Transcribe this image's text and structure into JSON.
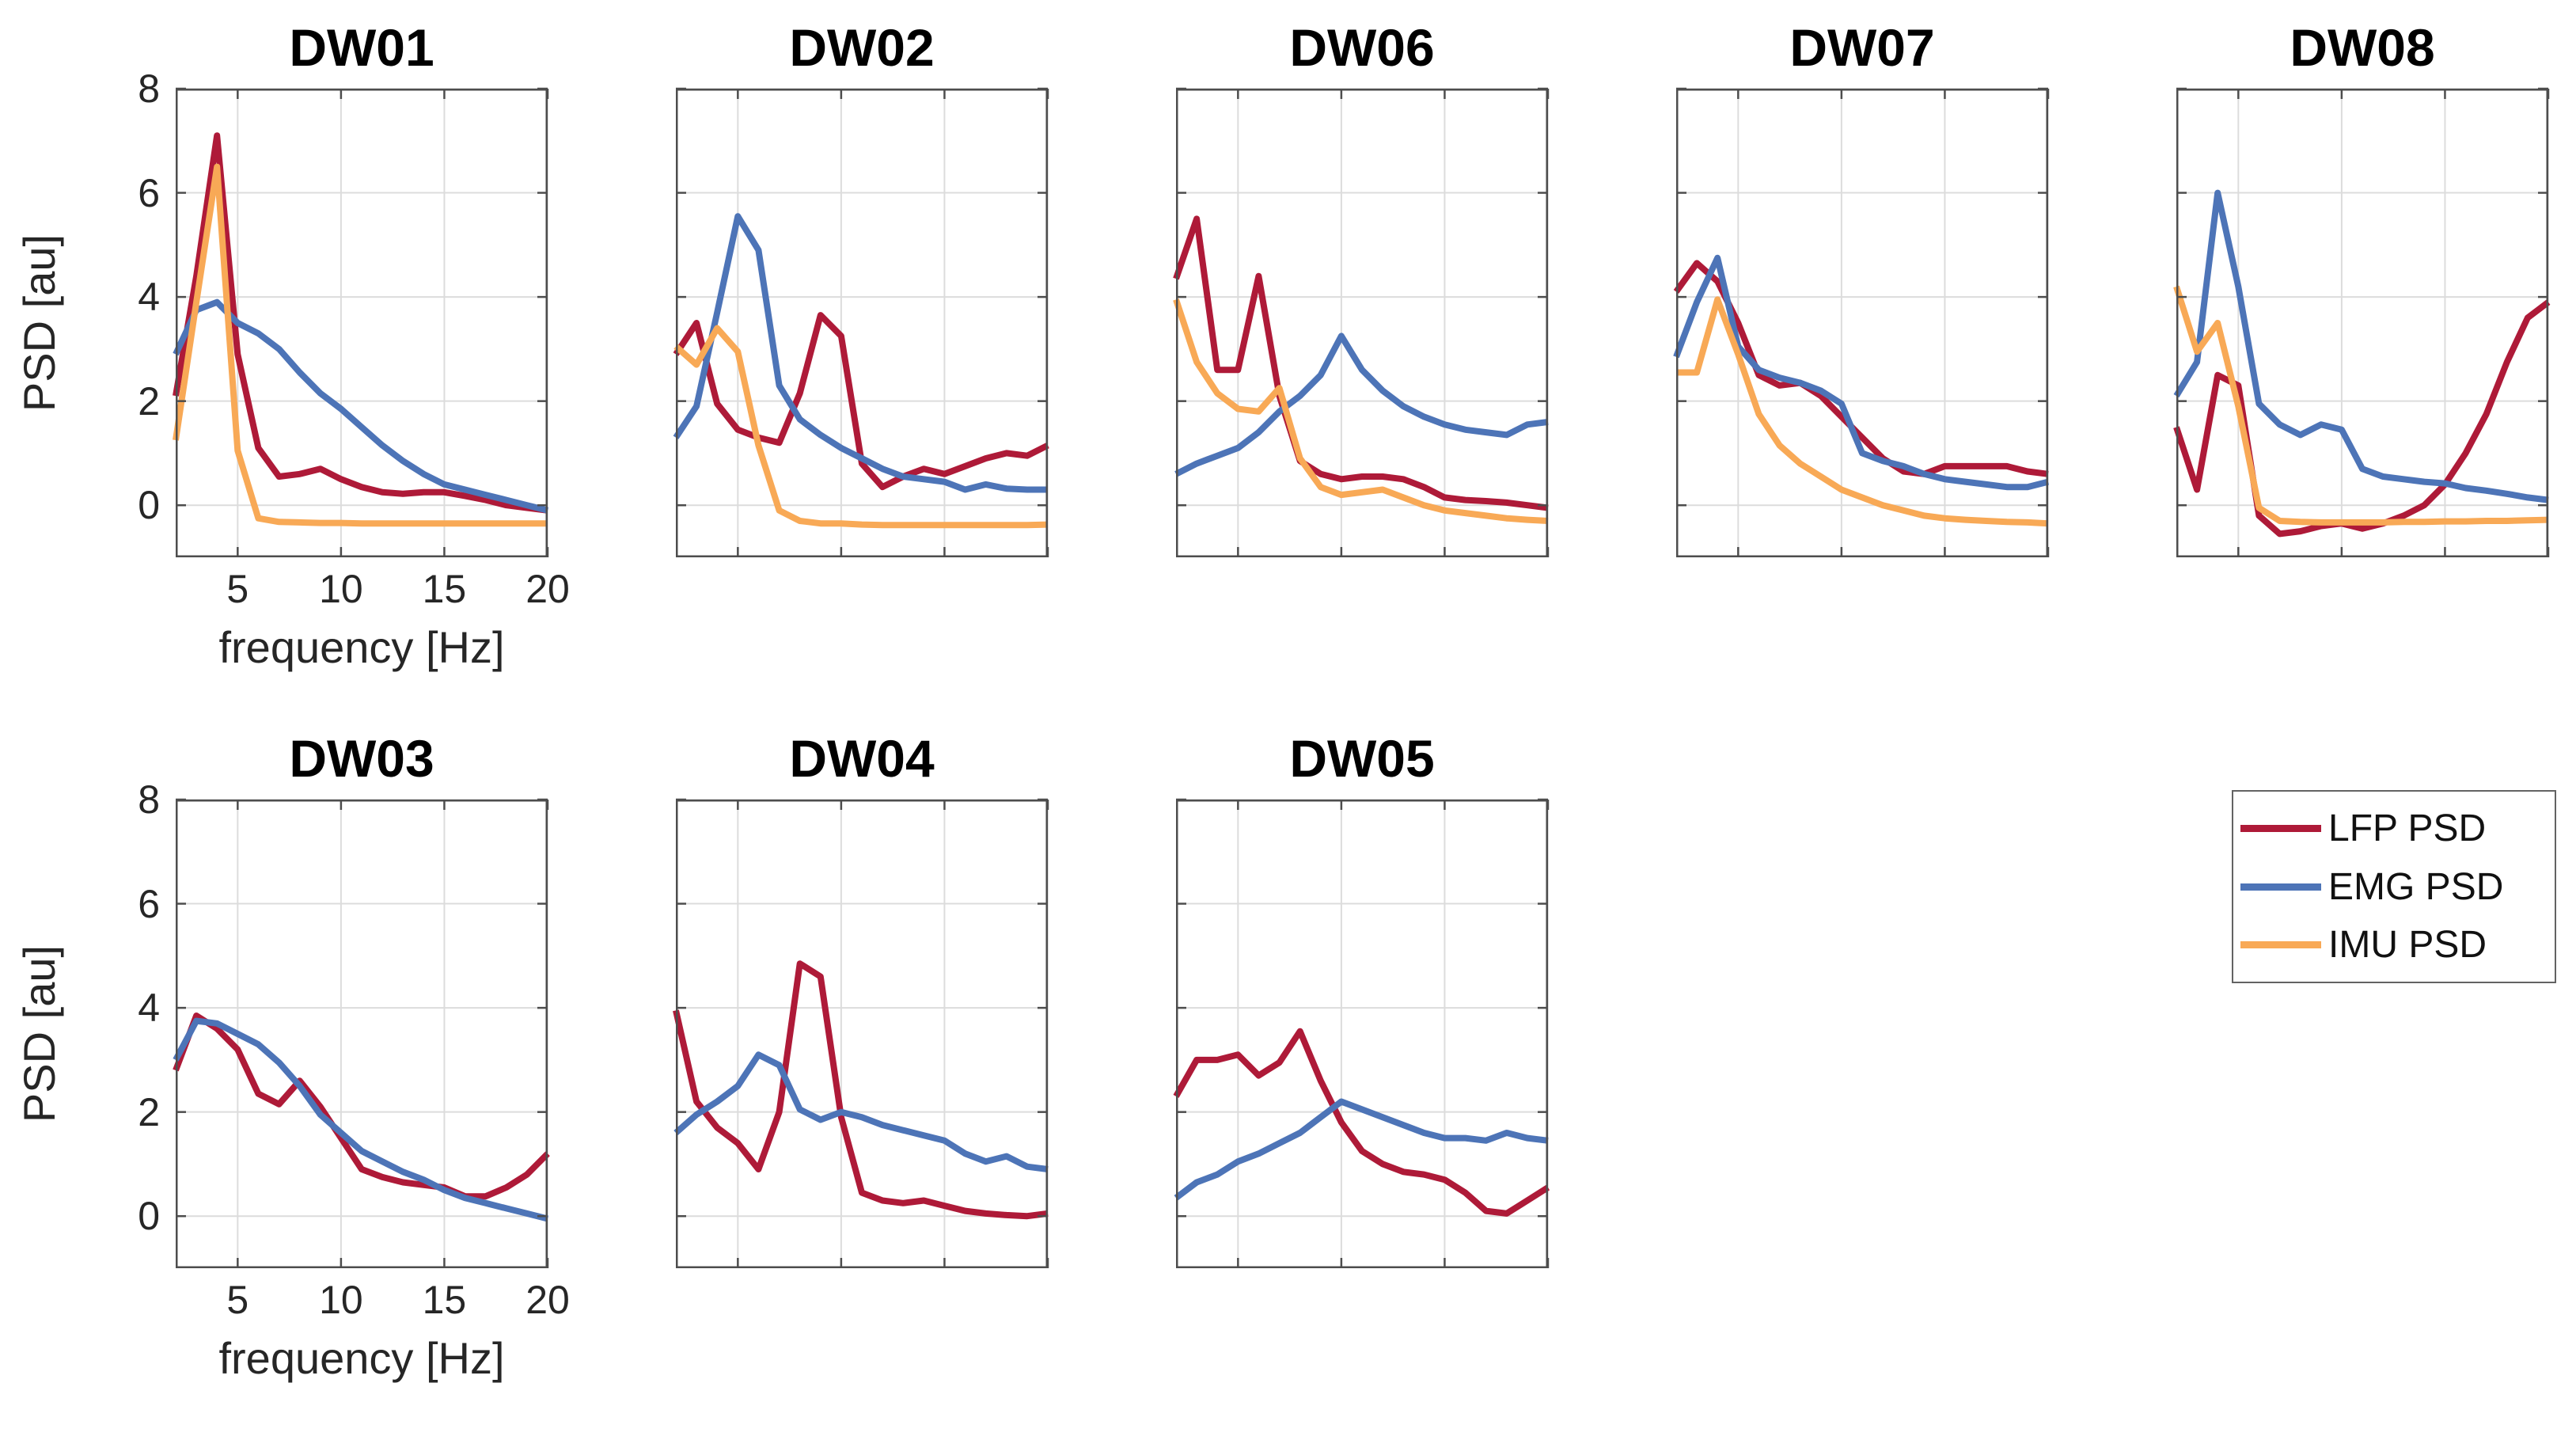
{
  "figure": {
    "background": "#ffffff",
    "xlabel": "frequency [Hz]",
    "ylabel": "PSD [au]",
    "x": [
      2,
      3,
      4,
      5,
      6,
      7,
      8,
      9,
      10,
      11,
      12,
      13,
      14,
      15,
      16,
      17,
      18,
      19,
      20
    ],
    "xlim": [
      2,
      20
    ],
    "ylim": [
      -1,
      8
    ],
    "xticks": [
      5,
      10,
      15,
      20
    ],
    "yticks": [
      0,
      2,
      4,
      6,
      8
    ],
    "grid": true,
    "grid_color": "#dcdcdc",
    "axis_color": "#4d4d4d",
    "text_color": "#262626",
    "title_color": "#000000"
  },
  "chart_data": [
    {
      "type": "line",
      "title": "DW01",
      "row": 0,
      "col": 0,
      "show_axis_labels": true,
      "series": [
        {
          "name": "LFP PSD",
          "color": "#AE1A38",
          "values": [
            2.1,
            4.4,
            7.1,
            2.9,
            1.1,
            0.55,
            0.6,
            0.7,
            0.5,
            0.35,
            0.25,
            0.22,
            0.25,
            0.25,
            0.18,
            0.1,
            0.0,
            -0.05,
            -0.1
          ]
        },
        {
          "name": "EMG PSD",
          "color": "#4D74B7",
          "values": [
            2.9,
            3.75,
            3.9,
            3.5,
            3.3,
            3.0,
            2.55,
            2.15,
            1.85,
            1.5,
            1.15,
            0.85,
            0.6,
            0.4,
            0.3,
            0.2,
            0.1,
            0.0,
            -0.1
          ]
        },
        {
          "name": "IMU PSD",
          "color": "#F8A956",
          "values": [
            1.25,
            3.9,
            6.5,
            1.05,
            -0.25,
            -0.32,
            -0.33,
            -0.34,
            -0.34,
            -0.35,
            -0.35,
            -0.35,
            -0.35,
            -0.35,
            -0.35,
            -0.35,
            -0.35,
            -0.35,
            -0.35
          ]
        }
      ]
    },
    {
      "type": "line",
      "title": "DW02",
      "row": 0,
      "col": 1,
      "show_axis_labels": false,
      "series": [
        {
          "name": "LFP PSD",
          "color": "#AE1A38",
          "values": [
            2.9,
            3.5,
            1.95,
            1.45,
            1.3,
            1.2,
            2.15,
            3.65,
            3.25,
            0.8,
            0.35,
            0.55,
            0.7,
            0.6,
            0.75,
            0.9,
            1.0,
            0.95,
            1.15
          ]
        },
        {
          "name": "EMG PSD",
          "color": "#4D74B7",
          "values": [
            1.3,
            1.9,
            3.7,
            5.55,
            4.9,
            2.3,
            1.65,
            1.35,
            1.1,
            0.9,
            0.7,
            0.55,
            0.5,
            0.45,
            0.3,
            0.4,
            0.32,
            0.3,
            0.3
          ]
        },
        {
          "name": "IMU PSD",
          "color": "#F8A956",
          "values": [
            3.05,
            2.7,
            3.4,
            2.95,
            1.15,
            -0.1,
            -0.3,
            -0.35,
            -0.35,
            -0.37,
            -0.38,
            -0.38,
            -0.38,
            -0.38,
            -0.38,
            -0.38,
            -0.38,
            -0.38,
            -0.37
          ]
        }
      ]
    },
    {
      "type": "line",
      "title": "DW06",
      "row": 0,
      "col": 2,
      "show_axis_labels": false,
      "series": [
        {
          "name": "LFP PSD",
          "color": "#AE1A38",
          "values": [
            4.35,
            5.5,
            2.6,
            2.6,
            4.4,
            2.1,
            0.85,
            0.6,
            0.5,
            0.55,
            0.55,
            0.5,
            0.35,
            0.15,
            0.1,
            0.08,
            0.05,
            0.0,
            -0.05
          ]
        },
        {
          "name": "EMG PSD",
          "color": "#4D74B7",
          "values": [
            0.6,
            0.8,
            0.95,
            1.1,
            1.4,
            1.8,
            2.1,
            2.5,
            3.25,
            2.6,
            2.2,
            1.9,
            1.7,
            1.55,
            1.45,
            1.4,
            1.35,
            1.55,
            1.6
          ]
        },
        {
          "name": "IMU PSD",
          "color": "#F8A956",
          "values": [
            3.95,
            2.75,
            2.15,
            1.85,
            1.8,
            2.25,
            0.9,
            0.35,
            0.2,
            0.25,
            0.3,
            0.15,
            0.0,
            -0.1,
            -0.15,
            -0.2,
            -0.25,
            -0.28,
            -0.3
          ]
        }
      ]
    },
    {
      "type": "line",
      "title": "DW07",
      "row": 0,
      "col": 3,
      "show_axis_labels": false,
      "series": [
        {
          "name": "LFP PSD",
          "color": "#AE1A38",
          "values": [
            4.1,
            4.65,
            4.3,
            3.5,
            2.5,
            2.3,
            2.35,
            2.1,
            1.7,
            1.3,
            0.9,
            0.65,
            0.6,
            0.75,
            0.75,
            0.75,
            0.75,
            0.65,
            0.6
          ]
        },
        {
          "name": "EMG PSD",
          "color": "#4D74B7",
          "values": [
            2.85,
            3.9,
            4.75,
            3.05,
            2.6,
            2.45,
            2.35,
            2.2,
            1.95,
            1.0,
            0.85,
            0.75,
            0.6,
            0.5,
            0.45,
            0.4,
            0.35,
            0.35,
            0.45
          ]
        },
        {
          "name": "IMU PSD",
          "color": "#F8A956",
          "values": [
            2.55,
            2.55,
            3.95,
            2.9,
            1.75,
            1.15,
            0.8,
            0.55,
            0.3,
            0.15,
            0.0,
            -0.1,
            -0.2,
            -0.25,
            -0.28,
            -0.3,
            -0.32,
            -0.33,
            -0.35
          ]
        }
      ]
    },
    {
      "type": "line",
      "title": "DW08",
      "row": 0,
      "col": 4,
      "show_axis_labels": false,
      "series": [
        {
          "name": "LFP PSD",
          "color": "#AE1A38",
          "values": [
            1.5,
            0.3,
            2.5,
            2.3,
            -0.2,
            -0.55,
            -0.5,
            -0.4,
            -0.35,
            -0.45,
            -0.35,
            -0.2,
            0.0,
            0.4,
            1.0,
            1.75,
            2.75,
            3.6,
            3.9
          ]
        },
        {
          "name": "EMG PSD",
          "color": "#4D74B7",
          "values": [
            2.1,
            2.75,
            6.0,
            4.2,
            1.95,
            1.55,
            1.35,
            1.55,
            1.45,
            0.7,
            0.55,
            0.5,
            0.45,
            0.42,
            0.33,
            0.28,
            0.22,
            0.15,
            0.1
          ]
        },
        {
          "name": "IMU PSD",
          "color": "#F8A956",
          "values": [
            4.2,
            2.95,
            3.5,
            1.9,
            -0.05,
            -0.3,
            -0.32,
            -0.33,
            -0.33,
            -0.33,
            -0.33,
            -0.32,
            -0.32,
            -0.31,
            -0.31,
            -0.3,
            -0.3,
            -0.29,
            -0.28
          ]
        }
      ]
    },
    {
      "type": "line",
      "title": "DW03",
      "row": 1,
      "col": 0,
      "show_axis_labels": true,
      "series": [
        {
          "name": "LFP PSD",
          "color": "#AE1A38",
          "values": [
            2.8,
            3.85,
            3.6,
            3.2,
            2.35,
            2.15,
            2.6,
            2.1,
            1.5,
            0.9,
            0.75,
            0.65,
            0.6,
            0.55,
            0.38,
            0.38,
            0.55,
            0.8,
            1.2
          ]
        },
        {
          "name": "EMG PSD",
          "color": "#4D74B7",
          "values": [
            3.0,
            3.75,
            3.7,
            3.5,
            3.3,
            2.95,
            2.5,
            1.95,
            1.6,
            1.25,
            1.05,
            0.85,
            0.7,
            0.5,
            0.35,
            0.25,
            0.15,
            0.05,
            -0.05
          ]
        }
      ]
    },
    {
      "type": "line",
      "title": "DW04",
      "row": 1,
      "col": 1,
      "show_axis_labels": false,
      "series": [
        {
          "name": "LFP PSD",
          "color": "#AE1A38",
          "values": [
            3.95,
            2.2,
            1.7,
            1.4,
            0.9,
            2.0,
            4.85,
            4.6,
            1.9,
            0.45,
            0.3,
            0.25,
            0.3,
            0.2,
            0.1,
            0.05,
            0.02,
            0.0,
            0.05
          ]
        },
        {
          "name": "EMG PSD",
          "color": "#4D74B7",
          "values": [
            1.6,
            1.95,
            2.2,
            2.5,
            3.1,
            2.9,
            2.05,
            1.85,
            2.0,
            1.9,
            1.75,
            1.65,
            1.55,
            1.45,
            1.2,
            1.05,
            1.15,
            0.95,
            0.9
          ]
        }
      ]
    },
    {
      "type": "line",
      "title": "DW05",
      "row": 1,
      "col": 2,
      "show_axis_labels": false,
      "series": [
        {
          "name": "LFP PSD",
          "color": "#AE1A38",
          "values": [
            2.3,
            3.0,
            3.0,
            3.1,
            2.7,
            2.95,
            3.55,
            2.6,
            1.8,
            1.25,
            1.0,
            0.85,
            0.8,
            0.7,
            0.45,
            0.1,
            0.05,
            0.3,
            0.55
          ]
        },
        {
          "name": "EMG PSD",
          "color": "#4D74B7",
          "values": [
            0.35,
            0.65,
            0.8,
            1.05,
            1.2,
            1.4,
            1.6,
            1.9,
            2.2,
            2.05,
            1.9,
            1.75,
            1.6,
            1.5,
            1.5,
            1.45,
            1.6,
            1.5,
            1.45
          ]
        }
      ]
    }
  ],
  "legend": {
    "position": "bottom-right",
    "items": [
      {
        "label": "LFP PSD",
        "color": "#AE1A38"
      },
      {
        "label": "EMG PSD",
        "color": "#4D74B7"
      },
      {
        "label": "IMU PSD",
        "color": "#F8A956"
      }
    ]
  }
}
